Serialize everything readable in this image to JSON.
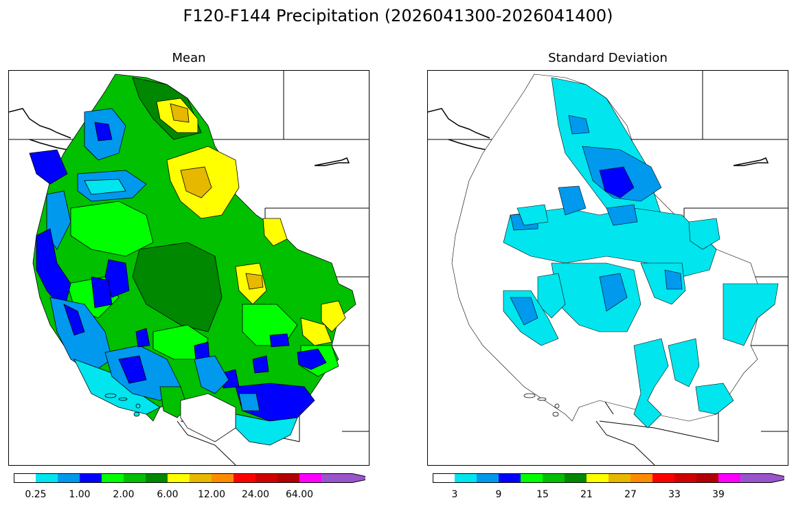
{
  "figure": {
    "title": "F120-F144 Precipitation (2026041300-2026041400)"
  },
  "panels": [
    {
      "id": "mean",
      "title": "Mean",
      "colorbar": {
        "colors": [
          "#ffffff",
          "#00e5ee",
          "#0099ee",
          "#0000ff",
          "#00ff00",
          "#00c000",
          "#008800",
          "#ffff00",
          "#e6b800",
          "#ff8c00",
          "#ff0000",
          "#d00000",
          "#b00000",
          "#ff00ff",
          "#9955cc"
        ],
        "extend": "max",
        "ticks": [
          "0.25",
          "1.00",
          "2.00",
          "6.00",
          "12.00",
          "24.00",
          "64.00"
        ]
      }
    },
    {
      "id": "stddev",
      "title": "Standard Deviation",
      "colorbar": {
        "colors": [
          "#ffffff",
          "#00e5ee",
          "#0099ee",
          "#0000ff",
          "#00ff00",
          "#00c000",
          "#008800",
          "#ffff00",
          "#e6b800",
          "#ff8c00",
          "#ff0000",
          "#d00000",
          "#b00000",
          "#ff00ff",
          "#9955cc"
        ],
        "extend": "max",
        "ticks": [
          "3",
          "9",
          "15",
          "21",
          "27",
          "33",
          "39"
        ]
      }
    }
  ]
}
